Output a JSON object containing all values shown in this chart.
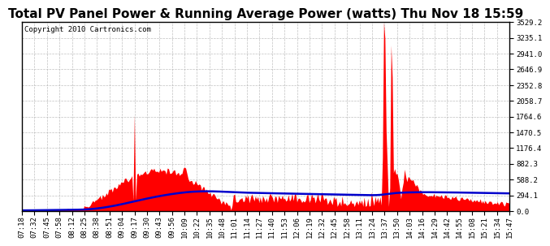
{
  "title": "Total PV Panel Power & Running Average Power (watts) Thu Nov 18 15:59",
  "copyright": "Copyright 2010 Cartronics.com",
  "background_color": "#ffffff",
  "plot_bg_color": "#ffffff",
  "grid_color": "#b0b0b0",
  "ytick_labels": [
    "0.0",
    "294.1",
    "588.2",
    "882.3",
    "1176.4",
    "1470.5",
    "1764.6",
    "2058.7",
    "2352.8",
    "2646.9",
    "2941.0",
    "3235.1",
    "3529.2"
  ],
  "ytick_values": [
    0.0,
    294.1,
    588.2,
    882.3,
    1176.4,
    1470.5,
    1764.6,
    2058.7,
    2352.8,
    2646.9,
    2941.0,
    3235.1,
    3529.2
  ],
  "ymax": 3529.2,
  "ymin": 0.0,
  "fill_color": "#ff0000",
  "line_color": "#0000cc",
  "line_width": 1.8,
  "title_fontsize": 11,
  "copyright_fontsize": 6.5,
  "tick_fontsize": 6.5,
  "xtick_labels": [
    "07:18",
    "07:32",
    "07:45",
    "07:58",
    "08:12",
    "08:25",
    "08:38",
    "08:51",
    "09:04",
    "09:17",
    "09:30",
    "09:43",
    "09:56",
    "10:09",
    "10:22",
    "10:35",
    "10:48",
    "11:01",
    "11:14",
    "11:27",
    "11:40",
    "11:53",
    "12:06",
    "12:19",
    "12:32",
    "12:45",
    "12:58",
    "13:11",
    "13:24",
    "13:37",
    "13:50",
    "14:03",
    "14:16",
    "14:29",
    "14:42",
    "14:55",
    "15:08",
    "15:21",
    "15:34",
    "15:47"
  ]
}
